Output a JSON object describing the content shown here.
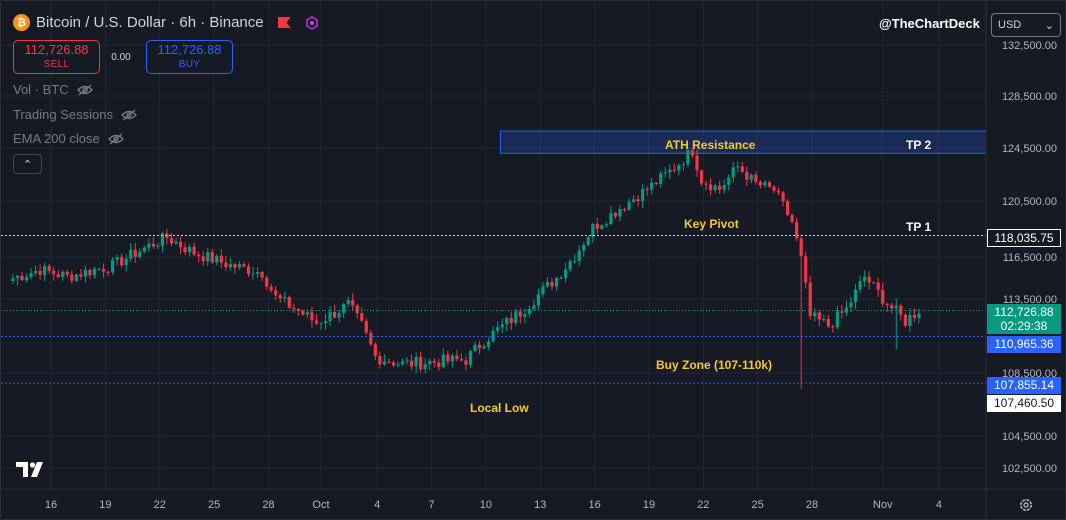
{
  "header": {
    "title": "Bitcoin / U.S. Dollar · 6h · Binance",
    "watermark": "@TheChartDeck",
    "currency": "USD",
    "currency_caret": "⌄"
  },
  "trade": {
    "sell_price": "112,726.88",
    "sell_label": "SELL",
    "spread": "0.00",
    "buy_price": "112,726.88",
    "buy_label": "BUY"
  },
  "indicators": [
    {
      "label": "Vol · BTC"
    },
    {
      "label": "Trading Sessions"
    },
    {
      "label": "EMA 200 close"
    }
  ],
  "collapse_glyph": "⌃",
  "colors": {
    "background": "#161a25",
    "up": "#089981",
    "down": "#f23645",
    "accent": "#2962ff",
    "annotation": "#f5c732"
  },
  "chart_data": {
    "type": "candlestick",
    "timeframe": "6h",
    "ylim": [
      101500,
      133500
    ],
    "y_ticks": [
      {
        "value": 132500,
        "label": "132,500.00"
      },
      {
        "value": 128500,
        "label": "128,500.00"
      },
      {
        "value": 124500,
        "label": "124,500.00"
      },
      {
        "value": 120500,
        "label": "120,500.00"
      },
      {
        "value": 116500,
        "label": "116,500.00"
      },
      {
        "value": 113500,
        "label": "113,500.00"
      },
      {
        "value": 108500,
        "label": "108,500.00"
      },
      {
        "value": 104500,
        "label": "104,500.00"
      },
      {
        "value": 102500,
        "label": "102,500.00"
      }
    ],
    "x_ticks": [
      {
        "day": 16,
        "label": "16"
      },
      {
        "day": 19,
        "label": "19"
      },
      {
        "day": 22,
        "label": "22"
      },
      {
        "day": 25,
        "label": "25"
      },
      {
        "day": 28,
        "label": "28"
      },
      {
        "day": 30.9,
        "label": "Oct"
      },
      {
        "day": 34,
        "label": "4"
      },
      {
        "day": 37,
        "label": "7"
      },
      {
        "day": 40,
        "label": "10"
      },
      {
        "day": 43,
        "label": "13"
      },
      {
        "day": 46,
        "label": "16"
      },
      {
        "day": 49,
        "label": "19"
      },
      {
        "day": 52,
        "label": "22"
      },
      {
        "day": 55,
        "label": "25"
      },
      {
        "day": 58,
        "label": "28"
      },
      {
        "day": 61.9,
        "label": "Nov"
      },
      {
        "day": 65,
        "label": "4"
      }
    ],
    "x_start_day": 13.9,
    "candles_per_day": 4,
    "anchors": [
      [
        115000,
        0
      ],
      [
        115600,
        6
      ],
      [
        115100,
        12
      ],
      [
        115900,
        22
      ],
      [
        117300,
        30
      ],
      [
        117900,
        34
      ],
      [
        116800,
        40
      ],
      [
        115900,
        48
      ],
      [
        115400,
        55
      ],
      [
        113600,
        58
      ],
      [
        112700,
        63
      ],
      [
        111900,
        67
      ],
      [
        113100,
        74
      ],
      [
        111700,
        77
      ],
      [
        109600,
        80
      ],
      [
        109100,
        86
      ],
      [
        109200,
        90
      ],
      [
        109400,
        100
      ],
      [
        110700,
        104
      ],
      [
        112600,
        112
      ],
      [
        115000,
        120
      ],
      [
        116600,
        124
      ],
      [
        118600,
        128
      ],
      [
        120000,
        134
      ],
      [
        121400,
        140
      ],
      [
        123000,
        146
      ],
      [
        124300,
        150
      ],
      [
        122100,
        152
      ],
      [
        121400,
        156
      ],
      [
        123100,
        160
      ],
      [
        121800,
        164
      ],
      [
        121300,
        168
      ],
      [
        119000,
        172
      ],
      [
        116300,
        174
      ],
      [
        112300,
        176
      ],
      [
        111700,
        180
      ],
      [
        112800,
        184
      ],
      [
        115100,
        188
      ],
      [
        113200,
        193
      ],
      [
        112000,
        197
      ],
      [
        112800,
        200
      ]
    ],
    "events": [
      {
        "i": 174,
        "low": 107500
      },
      {
        "i": 195,
        "low": 110100
      }
    ],
    "levels": [
      {
        "name": "ath-resistance",
        "type": "zone",
        "top": 125800,
        "bottom": 124100,
        "start_day": 40.8,
        "label": "ATH Resistance",
        "target": "TP 2"
      },
      {
        "name": "key-pivot",
        "type": "line",
        "value": 118035.75,
        "label": "Key Pivot",
        "target": "TP 1",
        "price_label": "118,035.75"
      },
      {
        "name": "buy-zone-top",
        "type": "line",
        "value": 110965.36,
        "price_label": "110,965.36"
      },
      {
        "name": "buy-zone-bottom",
        "type": "line",
        "value": 107855.14,
        "price_label": "107,855.14"
      },
      {
        "name": "local-low",
        "type": "marker",
        "value": 107460.5,
        "price_label": "107,460.50"
      }
    ],
    "last_price": {
      "value": 112726.88,
      "label": "112,726.88",
      "countdown": "02:29:38"
    },
    "annotations": {
      "ath": "ATH Resistance",
      "tp2": "TP 2",
      "pivot": "Key Pivot",
      "tp1": "TP 1",
      "buy_zone": "Buy Zone (107-110k)",
      "local_low": "Local Low"
    }
  }
}
